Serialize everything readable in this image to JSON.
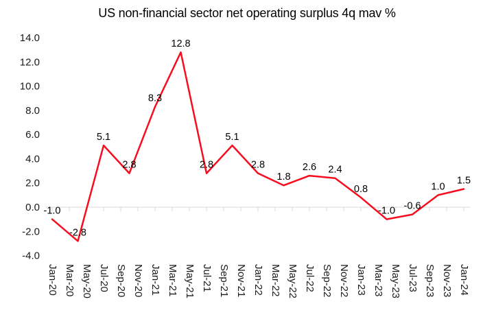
{
  "chart_data": {
    "type": "line",
    "title": "US non-financial sector net operating surplus 4q mav %",
    "unit": "%",
    "legend": "none",
    "gridlines": "zero-axis-only",
    "colors": {
      "line": "#f80c1e",
      "axis": "#d9d9d9",
      "tick": "#d9d9d9",
      "axis_text": "#1a1a1a",
      "data_label_text": "#000000",
      "title_text": "#000000",
      "background": "#ffffff"
    },
    "y_axis": {
      "min": -4.0,
      "max": 14.0,
      "step": 2.0,
      "tick_values": [
        14,
        12,
        10,
        8,
        6,
        4,
        2,
        0,
        -2,
        -4
      ],
      "tick_labels": [
        "14.0",
        "12.0",
        "10.0",
        "8.0",
        "6.0",
        "4.0",
        "2.0",
        "0.0",
        "-2.0",
        "-4.0"
      ]
    },
    "x_axis": {
      "tick_month_indices": [
        0,
        2,
        4,
        6,
        8,
        10,
        12,
        14,
        16,
        18,
        20,
        22,
        24,
        26,
        28,
        30,
        32,
        34,
        36,
        38,
        40,
        42,
        44,
        46,
        48
      ],
      "tick_labels": [
        "Jan-20",
        "Mar-20",
        "May-20",
        "Jul-20",
        "Sep-20",
        "Nov-20",
        "Jan-21",
        "Mar-21",
        "May-21",
        "Jul-21",
        "Sep-21",
        "Nov-21",
        "Jan-22",
        "Mar-22",
        "May-22",
        "Jul-22",
        "Sep-22",
        "Nov-22",
        "Jan-23",
        "Mar-23",
        "May-23",
        "Jul-23",
        "Sep-23",
        "Nov-23",
        "Jan-24"
      ]
    },
    "series": [
      {
        "name": "US non-financial sector net operating surplus 4q mav %",
        "color": "#f80c1e",
        "points": [
          {
            "x": "Jan-20",
            "month_index": 0,
            "value": -1.0,
            "label": "-1.0"
          },
          {
            "x": "Apr-20",
            "month_index": 3,
            "value": -2.8,
            "label": "-2.8"
          },
          {
            "x": "Jul-20",
            "month_index": 6,
            "value": 5.1,
            "label": "5.1"
          },
          {
            "x": "Oct-20",
            "month_index": 9,
            "value": 2.8,
            "label": "2.8"
          },
          {
            "x": "Jan-21",
            "month_index": 12,
            "value": 8.3,
            "label": "8.3"
          },
          {
            "x": "Apr-21",
            "month_index": 15,
            "value": 12.8,
            "label": "12.8"
          },
          {
            "x": "Jul-21",
            "month_index": 18,
            "value": 2.8,
            "label": "2.8"
          },
          {
            "x": "Oct-21",
            "month_index": 21,
            "value": 5.1,
            "label": "5.1"
          },
          {
            "x": "Jan-22",
            "month_index": 24,
            "value": 2.8,
            "label": "2.8"
          },
          {
            "x": "Apr-22",
            "month_index": 27,
            "value": 1.8,
            "label": "1.8"
          },
          {
            "x": "Jul-22",
            "month_index": 30,
            "value": 2.6,
            "label": "2.6"
          },
          {
            "x": "Oct-22",
            "month_index": 33,
            "value": 2.4,
            "label": "2.4"
          },
          {
            "x": "Jan-23",
            "month_index": 36,
            "value": 0.8,
            "label": "0.8"
          },
          {
            "x": "Apr-23",
            "month_index": 39,
            "value": -1.0,
            "label": "-1.0"
          },
          {
            "x": "Jul-23",
            "month_index": 42,
            "value": -0.6,
            "label": "-0.6"
          },
          {
            "x": "Oct-23",
            "month_index": 45,
            "value": 1.0,
            "label": "1.0"
          },
          {
            "x": "Jan-24",
            "month_index": 48,
            "value": 1.5,
            "label": "1.5"
          }
        ]
      }
    ]
  }
}
